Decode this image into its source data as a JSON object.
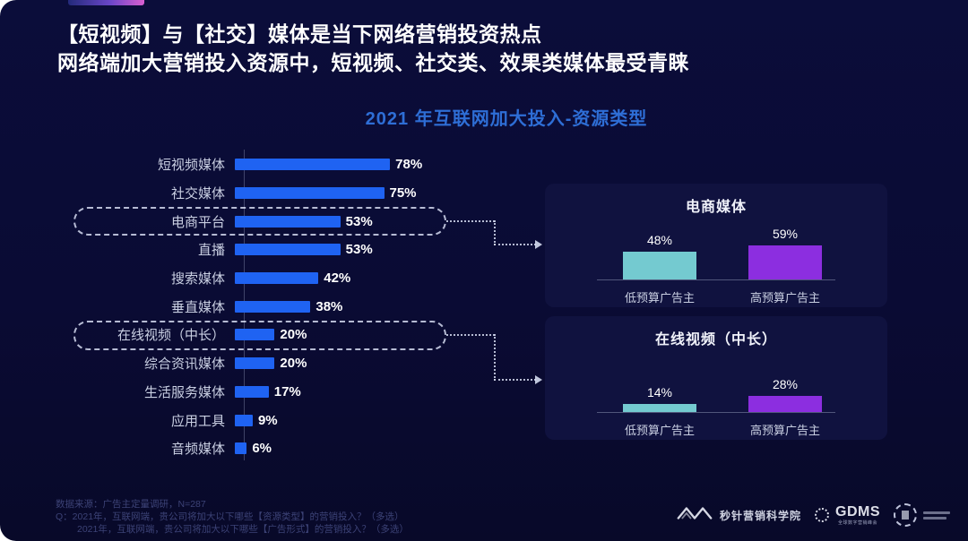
{
  "header": {
    "line1": "【短视频】与【社交】媒体是当下网络营销投资热点",
    "line2": "网络端加大营销投入资源中，短视频、社交类、效果类媒体最受青睐"
  },
  "chart_data": [
    {
      "type": "bar",
      "orientation": "horizontal",
      "title": "2021 年互联网加大投入-资源类型",
      "categories": [
        "短视频媒体",
        "社交媒体",
        "电商平台",
        "直播",
        "搜索媒体",
        "垂直媒体",
        "在线视频（中长）",
        "综合资讯媒体",
        "生活服务媒体",
        "应用工具",
        "音频媒体"
      ],
      "values": [
        78,
        75,
        53,
        53,
        42,
        38,
        20,
        20,
        17,
        9,
        6
      ],
      "unit": "%",
      "xlim": [
        0,
        100
      ],
      "bar_color": "#1f63f2",
      "grid": false,
      "highlighted_categories": [
        "电商平台",
        "在线视频（中长）"
      ]
    },
    {
      "type": "bar",
      "orientation": "vertical",
      "title": "电商媒体",
      "categories": [
        "低预算广告主",
        "高预算广告主"
      ],
      "values": [
        48,
        59
      ],
      "unit": "%",
      "colors": [
        "#74cad0",
        "#8c2ee0"
      ]
    },
    {
      "type": "bar",
      "orientation": "vertical",
      "title": "在线视频（中长）",
      "categories": [
        "低预算广告主",
        "高预算广告主"
      ],
      "values": [
        14,
        28
      ],
      "unit": "%",
      "colors": [
        "#74cad0",
        "#8c2ee0"
      ]
    }
  ],
  "footer": {
    "source": "数据来源：广告主定量调研，N=287",
    "q_prefix": "Q：",
    "question1": "2021年，互联网端，贵公司将加大以下哪些【资源类型】的营销投入？（多选）",
    "question2": "2021年，互联网端，贵公司将加大以下哪些【广告形式】的营销投入？（多选）"
  },
  "logos": {
    "miaozhen_label": "秒针营销科学院",
    "gdms_label": "GDMS",
    "gdms_subtitle": "全球数字营销峰会"
  },
  "colors": {
    "slide_bg": "#0a0b34",
    "panel_bg": "#10123f",
    "bar_blue": "#1f63f2",
    "teal": "#74cad0",
    "purple": "#8c2ee0",
    "chart_title_blue": "#2e6ed6",
    "accent_gradient_end": "#d95fd0",
    "dashed_line": "#d5dbf0"
  }
}
